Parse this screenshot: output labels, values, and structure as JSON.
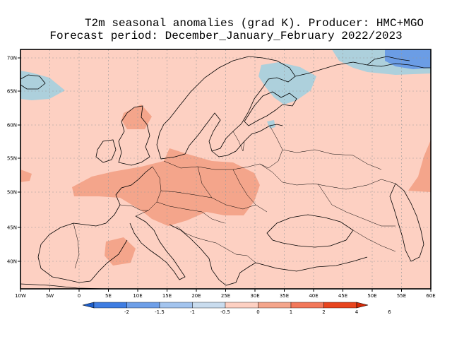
{
  "title": {
    "line1": "T2m seasonal anomalies (grad K). Producer: HMC+MGO",
    "line2": "Forecast period: December_January_February 2022/2023"
  },
  "map": {
    "background_color": "#fdd0c2",
    "lon_range": [
      -10,
      60
    ],
    "lat_range": [
      35,
      72
    ],
    "lon_ticks": [
      "10W",
      "5W",
      "0",
      "5E",
      "10E",
      "15E",
      "20E",
      "25E",
      "30E",
      "35E",
      "40E",
      "45E",
      "50E",
      "55E",
      "60E"
    ],
    "lat_ticks": [
      "70N",
      "65N",
      "60N",
      "55N",
      "50N",
      "45N",
      "40N"
    ],
    "gridlines": true,
    "anomaly_regions": [
      {
        "region": "central-europe-warm",
        "class": "1 to 2",
        "color": "#f4a58b"
      },
      {
        "region": "britain-warm",
        "class": "1 to 2",
        "color": "#f4a58b"
      },
      {
        "region": "scandinavia-north-cool",
        "class": "-0.5 to 0",
        "color": "#add0dc"
      },
      {
        "region": "north-atlantic-cool",
        "class": "-0.5 to 0",
        "color": "#add0dc"
      },
      {
        "region": "barents-cold",
        "class": "-1 to -0.5",
        "color": "#6b9de5"
      },
      {
        "region": "italy-warm",
        "class": "1 to 2",
        "color": "#f4a58b"
      },
      {
        "region": "caspian-warm",
        "class": "1 to 2",
        "color": "#f4a58b"
      }
    ]
  },
  "legend": {
    "labels": [
      "-2",
      "-1.5",
      "-1",
      "-0.5",
      "0",
      "1",
      "2",
      "4",
      "6"
    ],
    "colors": [
      "#1d5ecb",
      "#3f7de2",
      "#6e9fe8",
      "#a3c4ee",
      "#c9dcee",
      "#fdd0c2",
      "#f4a58b",
      "#f2785a",
      "#e8451e",
      "#d42a08"
    ]
  }
}
